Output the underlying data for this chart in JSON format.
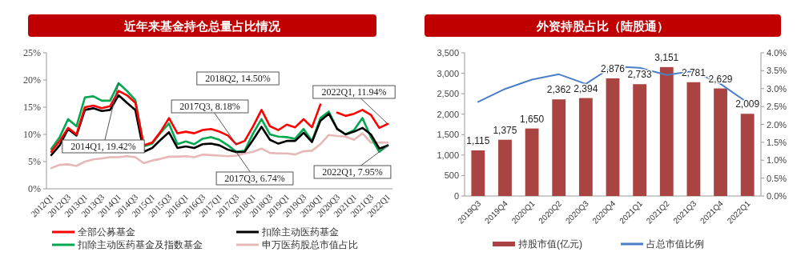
{
  "chart_data": [
    {
      "type": "line",
      "title": "近年来基金持仓总量占比情况",
      "categories": [
        "2012Q1",
        null,
        "2012Q3",
        null,
        "2013Q1",
        null,
        "2013Q3",
        null,
        "2014Q1",
        null,
        "2014Q3",
        null,
        "2015Q1",
        null,
        "2015Q3",
        null,
        "2016Q1",
        null,
        "2016Q3",
        null,
        "2017Q1",
        null,
        "2017Q3",
        null,
        "2018Q1",
        null,
        "2018Q3",
        null,
        "2019Q1",
        null,
        "2019Q3",
        null,
        "2020Q1",
        null,
        "2020Q3",
        null,
        "2021Q1",
        null,
        "2021Q3",
        null,
        "2022Q1"
      ],
      "series": [
        {
          "name": "全部公募基金",
          "color": "#ff0000",
          "values": [
            6.8,
            8.8,
            11.2,
            10.0,
            15.0,
            15.3,
            14.8,
            15.2,
            18.0,
            17.2,
            15.8,
            8.0,
            8.5,
            10.5,
            13.0,
            10.2,
            10.5,
            10.2,
            10.8,
            11.0,
            10.5,
            9.8,
            8.18,
            8.8,
            11.5,
            14.5,
            11.5,
            10.8,
            11.8,
            11.3,
            12.8,
            11.3,
            15.5,
            null,
            14.0,
            13.4,
            13.8,
            14.5,
            13.6,
            11.2,
            11.94
          ]
        },
        {
          "name": "扣除主动医药基金",
          "color": "#000000",
          "values": [
            6.2,
            8.0,
            11.0,
            9.8,
            14.5,
            14.8,
            14.3,
            14.5,
            17.2,
            15.8,
            14.5,
            6.8,
            7.5,
            9.0,
            10.4,
            7.5,
            7.8,
            7.5,
            8.2,
            8.3,
            8.0,
            7.2,
            6.74,
            6.8,
            9.0,
            11.4,
            9.0,
            8.3,
            8.8,
            8.8,
            10.3,
            8.6,
            12.5,
            13.8,
            11.0,
            10.0,
            10.5,
            11.2,
            10.0,
            7.4,
            7.95
          ]
        },
        {
          "name": "扣除主动医药基金及指数基金",
          "color": "#00a850",
          "values": [
            7.3,
            9.5,
            12.8,
            11.5,
            16.8,
            17.0,
            16.2,
            16.2,
            19.42,
            18.0,
            16.3,
            7.8,
            8.3,
            10.3,
            12.0,
            8.2,
            8.7,
            8.2,
            9.2,
            9.5,
            9.0,
            8.0,
            6.8,
            7.0,
            10.2,
            12.8,
            10.0,
            9.6,
            9.5,
            9.2,
            11.0,
            8.8,
            13.0,
            14.2,
            11.0,
            10.0,
            10.8,
            13.0,
            9.5,
            6.8,
            8.0
          ]
        },
        {
          "name": "申万医药股总市值占比",
          "color": "#e6b8b8",
          "values": [
            3.8,
            4.4,
            4.5,
            4.2,
            5.0,
            5.4,
            5.6,
            5.8,
            5.8,
            6.0,
            5.8,
            4.7,
            5.2,
            5.5,
            5.9,
            5.9,
            6.0,
            5.8,
            6.3,
            6.2,
            6.1,
            6.0,
            6.1,
            6.5,
            6.8,
            7.4,
            6.6,
            6.5,
            6.5,
            6.3,
            6.9,
            7.0,
            8.2,
            9.9,
            9.7,
            9.6,
            9.0,
            10.2,
            8.5,
            8.5,
            8.5
          ]
        }
      ],
      "ylim": [
        0,
        25
      ],
      "yticks": [
        {
          "value": 0,
          "label": "0%"
        },
        {
          "value": 5,
          "label": "5%"
        },
        {
          "value": 10,
          "label": "10%"
        },
        {
          "value": 15,
          "label": "15%"
        },
        {
          "value": 20,
          "label": "20%"
        },
        {
          "value": 25,
          "label": "25%"
        }
      ],
      "annotations": [
        {
          "text": "2014Q1, 19.42%",
          "x": "2014Q1",
          "y": 19.42
        },
        {
          "text": "2017Q3, 8.18%",
          "x": "2017Q3",
          "y": 8.18
        },
        "2018Q2, 14.50%",
        {
          "text": "2022Q1, 11.94%",
          "x": "2022Q1",
          "y": 11.94
        },
        {
          "text": "2017Q3, 6.74%",
          "x": "2017Q3",
          "y": 6.74
        },
        {
          "text": "2022Q1, 7.95%",
          "x": "2022Q1",
          "y": 7.95
        }
      ],
      "legend": "bottom",
      "line_style": "solid"
    },
    {
      "type": "bar",
      "title": "外资持股占比（陆股通）",
      "categories": [
        "2019Q3",
        "2019Q4",
        "2020Q1",
        "2020Q2",
        "2020Q3",
        "2020Q4",
        "2021Q1",
        "2021Q2",
        "2021Q3",
        "2021Q4",
        "2022Q1"
      ],
      "series": [
        {
          "name": "持股市值(亿元)",
          "color": "#a94442",
          "values": [
            1115,
            1375,
            1650,
            2362,
            2394,
            2876,
            2733,
            3151,
            2781,
            2629,
            2009
          ],
          "value_labels": [
            "1,115",
            "1,375",
            "1,650",
            "2,362",
            "2,394",
            "2,876",
            "2,733",
            "3,151",
            "2,781",
            "2,629",
            "2,009"
          ]
        },
        {
          "name": "占总市值比例",
          "type": "line",
          "axis": "y2",
          "color": "#4a7fc8",
          "values": [
            2.63,
            2.99,
            3.25,
            3.4,
            3.13,
            3.62,
            3.58,
            3.38,
            3.49,
            3.13,
            2.61
          ]
        }
      ],
      "ylim": [
        0,
        3500
      ],
      "yticks": [
        0,
        500,
        {
          "value": 1000,
          "label": "1,000"
        },
        {
          "value": 1500,
          "label": "1,500"
        },
        {
          "value": 2000,
          "label": "2,000"
        },
        {
          "value": 2500,
          "label": "2,500"
        },
        {
          "value": 3000,
          "label": "3,000"
        },
        {
          "value": 3500,
          "label": "3,500"
        }
      ],
      "y2lim": [
        0,
        4
      ],
      "y2ticks": [
        {
          "value": 0,
          "label": "0.0%"
        },
        {
          "value": 0.5,
          "label": "0.5%"
        },
        {
          "value": 1,
          "label": "1.0%"
        },
        {
          "value": 1.5,
          "label": "1.5%"
        },
        {
          "value": 2,
          "label": "2.0%"
        },
        {
          "value": 2.5,
          "label": "2.5%"
        },
        {
          "value": 3,
          "label": "3.0%"
        },
        {
          "value": 3.5,
          "label": "3.5%"
        },
        {
          "value": 4,
          "label": "4.0%"
        }
      ],
      "legend": "bottom"
    }
  ]
}
